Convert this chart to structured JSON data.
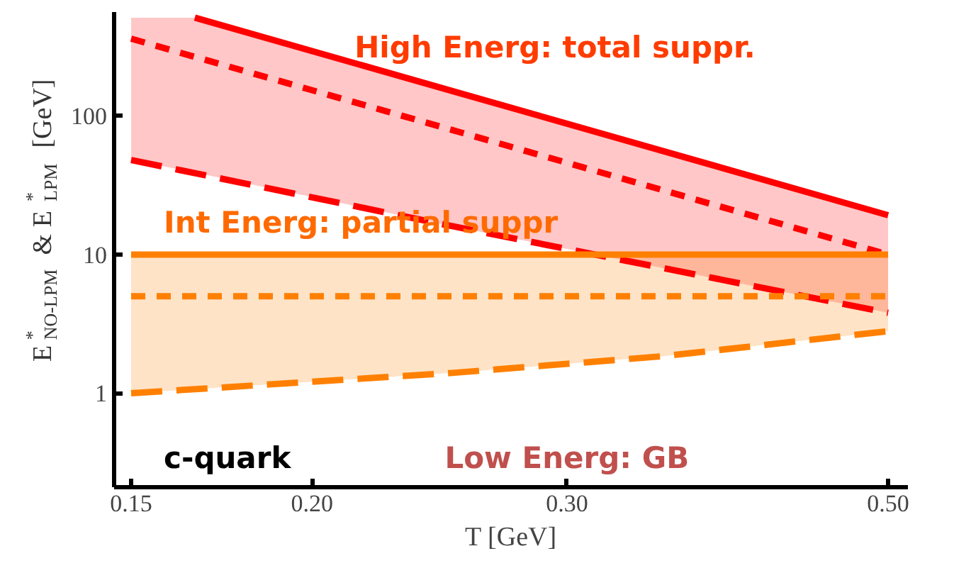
{
  "chart_data": {
    "type": "line",
    "xlabel": "T [GeV]",
    "ylabel": "E$^{*}$$_{NO-LPM}$ & E$^{*}$$_{LPM}$ [GeV]",
    "log": "xy",
    "grid": false,
    "xlim": [
      0.146,
      0.516
    ],
    "ylim": [
      0.21,
      560
    ],
    "xticks": [
      0.15,
      {
        "value": 0.2,
        "label": "0.20"
      },
      {
        "value": 0.3,
        "label": "0.30"
      },
      {
        "value": 0.5,
        "label": "0.50"
      }
    ],
    "yticks": [
      1,
      10,
      100
    ],
    "series": [
      {
        "color": "#ff0000",
        "line_style": "solid",
        "x": [
          0.166,
          0.25,
          0.5
        ],
        "values": [
          510,
          151,
          19.2
        ]
      },
      {
        "color": "#ff0000",
        "line_style": "dotted",
        "x": [
          0.15,
          0.166,
          0.25,
          0.5
        ],
        "values": [
          360,
          266,
          79,
          10
        ],
        "lower": [
          48,
          39,
          16,
          3.8
        ],
        "upper": [
          510,
          510,
          151,
          19.2
        ]
      },
      {
        "color": "#ff0000",
        "line_style": "dashed",
        "x": [
          0.15,
          0.25,
          0.5
        ],
        "values": [
          48,
          16,
          3.8
        ]
      },
      {
        "color": "#ff8000",
        "line_style": "solid",
        "x": [
          0.15,
          0.5
        ],
        "values": [
          10,
          10
        ]
      },
      {
        "color": "#ff8000",
        "line_style": "dotted",
        "x": [
          0.15,
          0.25,
          0.35,
          0.5
        ],
        "values": [
          5,
          5,
          5,
          5
        ],
        "lower": [
          1.0,
          1.4,
          1.85,
          2.8
        ],
        "upper": [
          10,
          10,
          10,
          10
        ]
      },
      {
        "color": "#ff8000",
        "line_style": "dashed",
        "x": [
          0.15,
          0.25,
          0.35,
          0.5
        ],
        "values": [
          1.0,
          1.4,
          1.85,
          2.8
        ]
      }
    ],
    "annotations": [
      "High Energ: total suppr.",
      "Int Energ: partial suppr",
      "c-quark",
      "Low Energ: GB"
    ]
  }
}
